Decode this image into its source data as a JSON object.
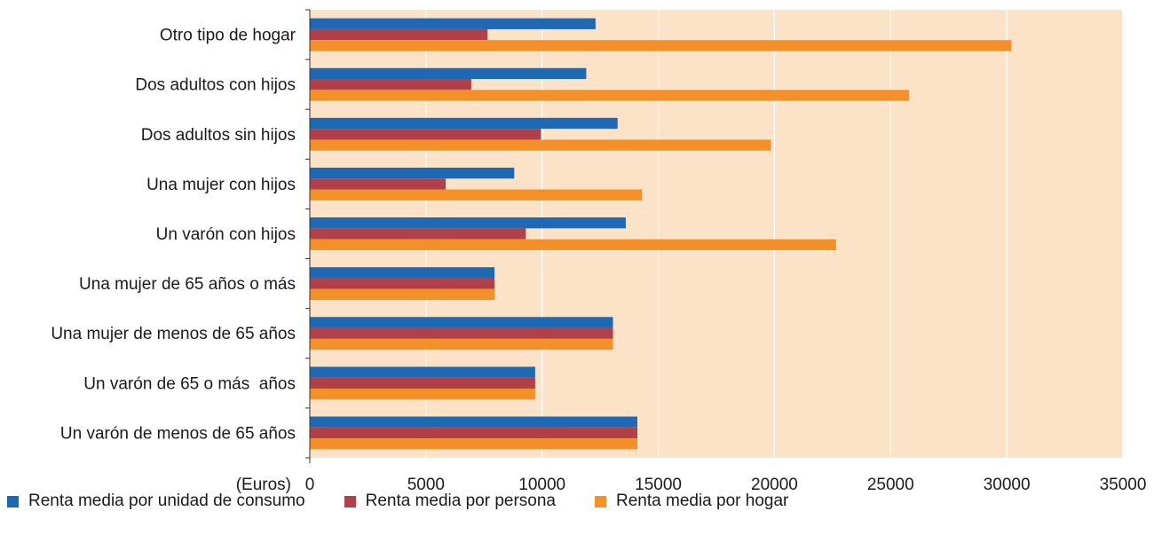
{
  "chart_data": {
    "type": "bar",
    "orientation": "horizontal",
    "categories": [
      "Otro tipo de hogar",
      "Dos adultos con hijos",
      "Dos adultos sin hijos",
      "Una mujer con hijos",
      "Un varón con hijos",
      "Una mujer de 65 años o más",
      "Una mujer de menos de 65 años",
      "Un varón de 65 o más  años",
      "Un varón de menos de 65 años"
    ],
    "series": [
      {
        "name": "Renta media por unidad de consumo",
        "color": "#1f68b3",
        "values": [
          12300,
          11900,
          13250,
          8800,
          13600,
          7950,
          13050,
          9700,
          14100
        ]
      },
      {
        "name": "Renta media por persona",
        "color": "#b0414a",
        "values": [
          7650,
          6950,
          9950,
          5850,
          9300,
          7950,
          13050,
          9700,
          14100
        ]
      },
      {
        "name": "Renta media por hogar",
        "color": "#f3902a",
        "values": [
          30200,
          25800,
          19850,
          14300,
          22650,
          7950,
          13050,
          9700,
          14100
        ]
      }
    ],
    "xlabel": "(Euros)",
    "xlim": [
      0,
      35000
    ],
    "xticks": [
      "0",
      "5000",
      "10000",
      "15000",
      "20000",
      "25000",
      "30000",
      "35000"
    ],
    "grid": "vertical",
    "plot_background": "#fce3c7",
    "legend_position": "bottom"
  }
}
